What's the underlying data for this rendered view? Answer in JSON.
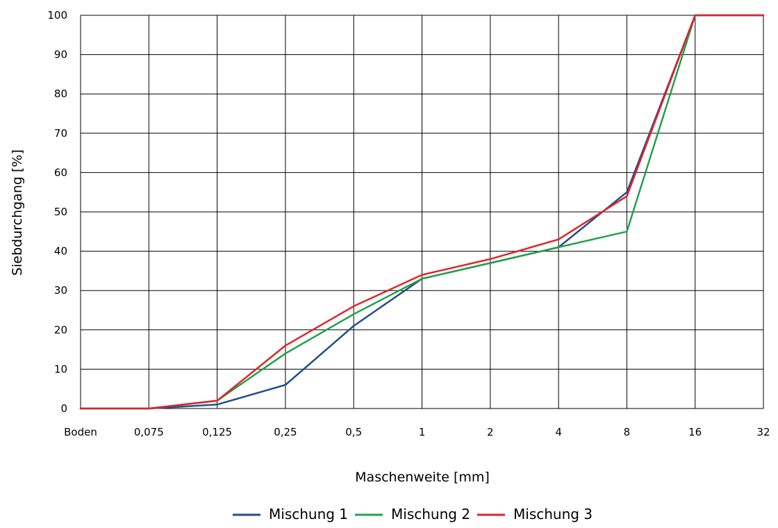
{
  "chart_data": {
    "type": "line",
    "title": "",
    "xlabel": "Maschenweite [mm]",
    "ylabel": "Siebdurchgang [%]",
    "categories": [
      "Boden",
      "0,075",
      "0,125",
      "0,25",
      "0,5",
      "1",
      "2",
      "4",
      "8",
      "16",
      "32"
    ],
    "yticks": [
      "0",
      "10",
      "20",
      "30",
      "40",
      "50",
      "60",
      "70",
      "80",
      "90",
      "100"
    ],
    "ylim": [
      0,
      100
    ],
    "grid": true,
    "legend_position": "bottom-center",
    "series": [
      {
        "name": "Mischung 1",
        "color": "#1f4e8c",
        "values": [
          0,
          0,
          1,
          6,
          21,
          33,
          37,
          41,
          55,
          100,
          100
        ]
      },
      {
        "name": "Mischung 2",
        "color": "#1fa14a",
        "values": [
          0,
          0,
          2,
          14,
          24,
          33,
          37,
          41,
          45,
          100,
          100
        ]
      },
      {
        "name": "Mischung 3",
        "color": "#e0242b",
        "values": [
          0,
          0,
          2,
          16,
          26,
          34,
          38,
          43,
          54,
          100,
          100
        ]
      }
    ]
  }
}
